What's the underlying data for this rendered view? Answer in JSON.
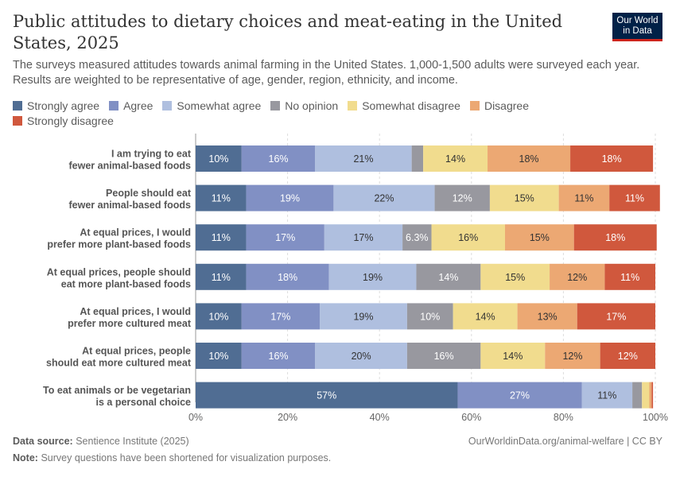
{
  "header": {
    "title": "Public attitudes to dietary choices and meat-eating in the United States, 2025",
    "subtitle": "The surveys measured attitudes towards animal farming in the United States. 1,000-1,500 adults were surveyed each year. Results are weighted to be representative of age, gender, region, ethnicity, and income.",
    "logo": "Our World in Data"
  },
  "chart_data": {
    "type": "bar",
    "orientation": "horizontal",
    "stacked": true,
    "xlim": [
      0,
      100
    ],
    "xticks": [
      "0%",
      "20%",
      "40%",
      "60%",
      "80%",
      "100%"
    ],
    "grid": true,
    "legend": "top",
    "categories": [
      "I am trying to eat fewer animal-based foods",
      "People should eat fewer animal-based foods",
      "At equal prices, I would prefer more plant-based foods",
      "At equal prices, people should eat more plant-based foods",
      "At equal prices, I would prefer more cultured meat",
      "At equal prices, people should eat more cultured meat",
      "To eat animals or be vegetarian is a personal choice"
    ],
    "series": [
      {
        "name": "Strongly agree",
        "color": "#506d93",
        "values": [
          10,
          11,
          11,
          11,
          10,
          10,
          57
        ]
      },
      {
        "name": "Agree",
        "color": "#8190c4",
        "values": [
          16,
          19,
          17,
          18,
          17,
          16,
          27
        ]
      },
      {
        "name": "Somewhat agree",
        "color": "#afbfdf",
        "values": [
          21,
          22,
          17,
          19,
          19,
          20,
          11
        ]
      },
      {
        "name": "No opinion",
        "color": "#98989f",
        "values": [
          2.5,
          12,
          6.3,
          14,
          10,
          16,
          2.1
        ]
      },
      {
        "name": "Somewhat disagree",
        "color": "#f1dc8e",
        "values": [
          14,
          15,
          16,
          15,
          14,
          14,
          1.6
        ]
      },
      {
        "name": "Disagree",
        "color": "#eca873",
        "values": [
          18,
          11,
          15,
          12,
          13,
          12,
          0.5
        ]
      },
      {
        "name": "Strongly disagree",
        "color": "#d0583d",
        "values": [
          18,
          11,
          18,
          11,
          17,
          12,
          0.3
        ]
      }
    ]
  },
  "footer": {
    "source_label": "Data source:",
    "source": "Sentience Institute (2025)",
    "url": "OurWorldinData.org/animal-welfare | CC BY",
    "note_label": "Note:",
    "note": "Survey questions have been shortened for visualization purposes."
  }
}
